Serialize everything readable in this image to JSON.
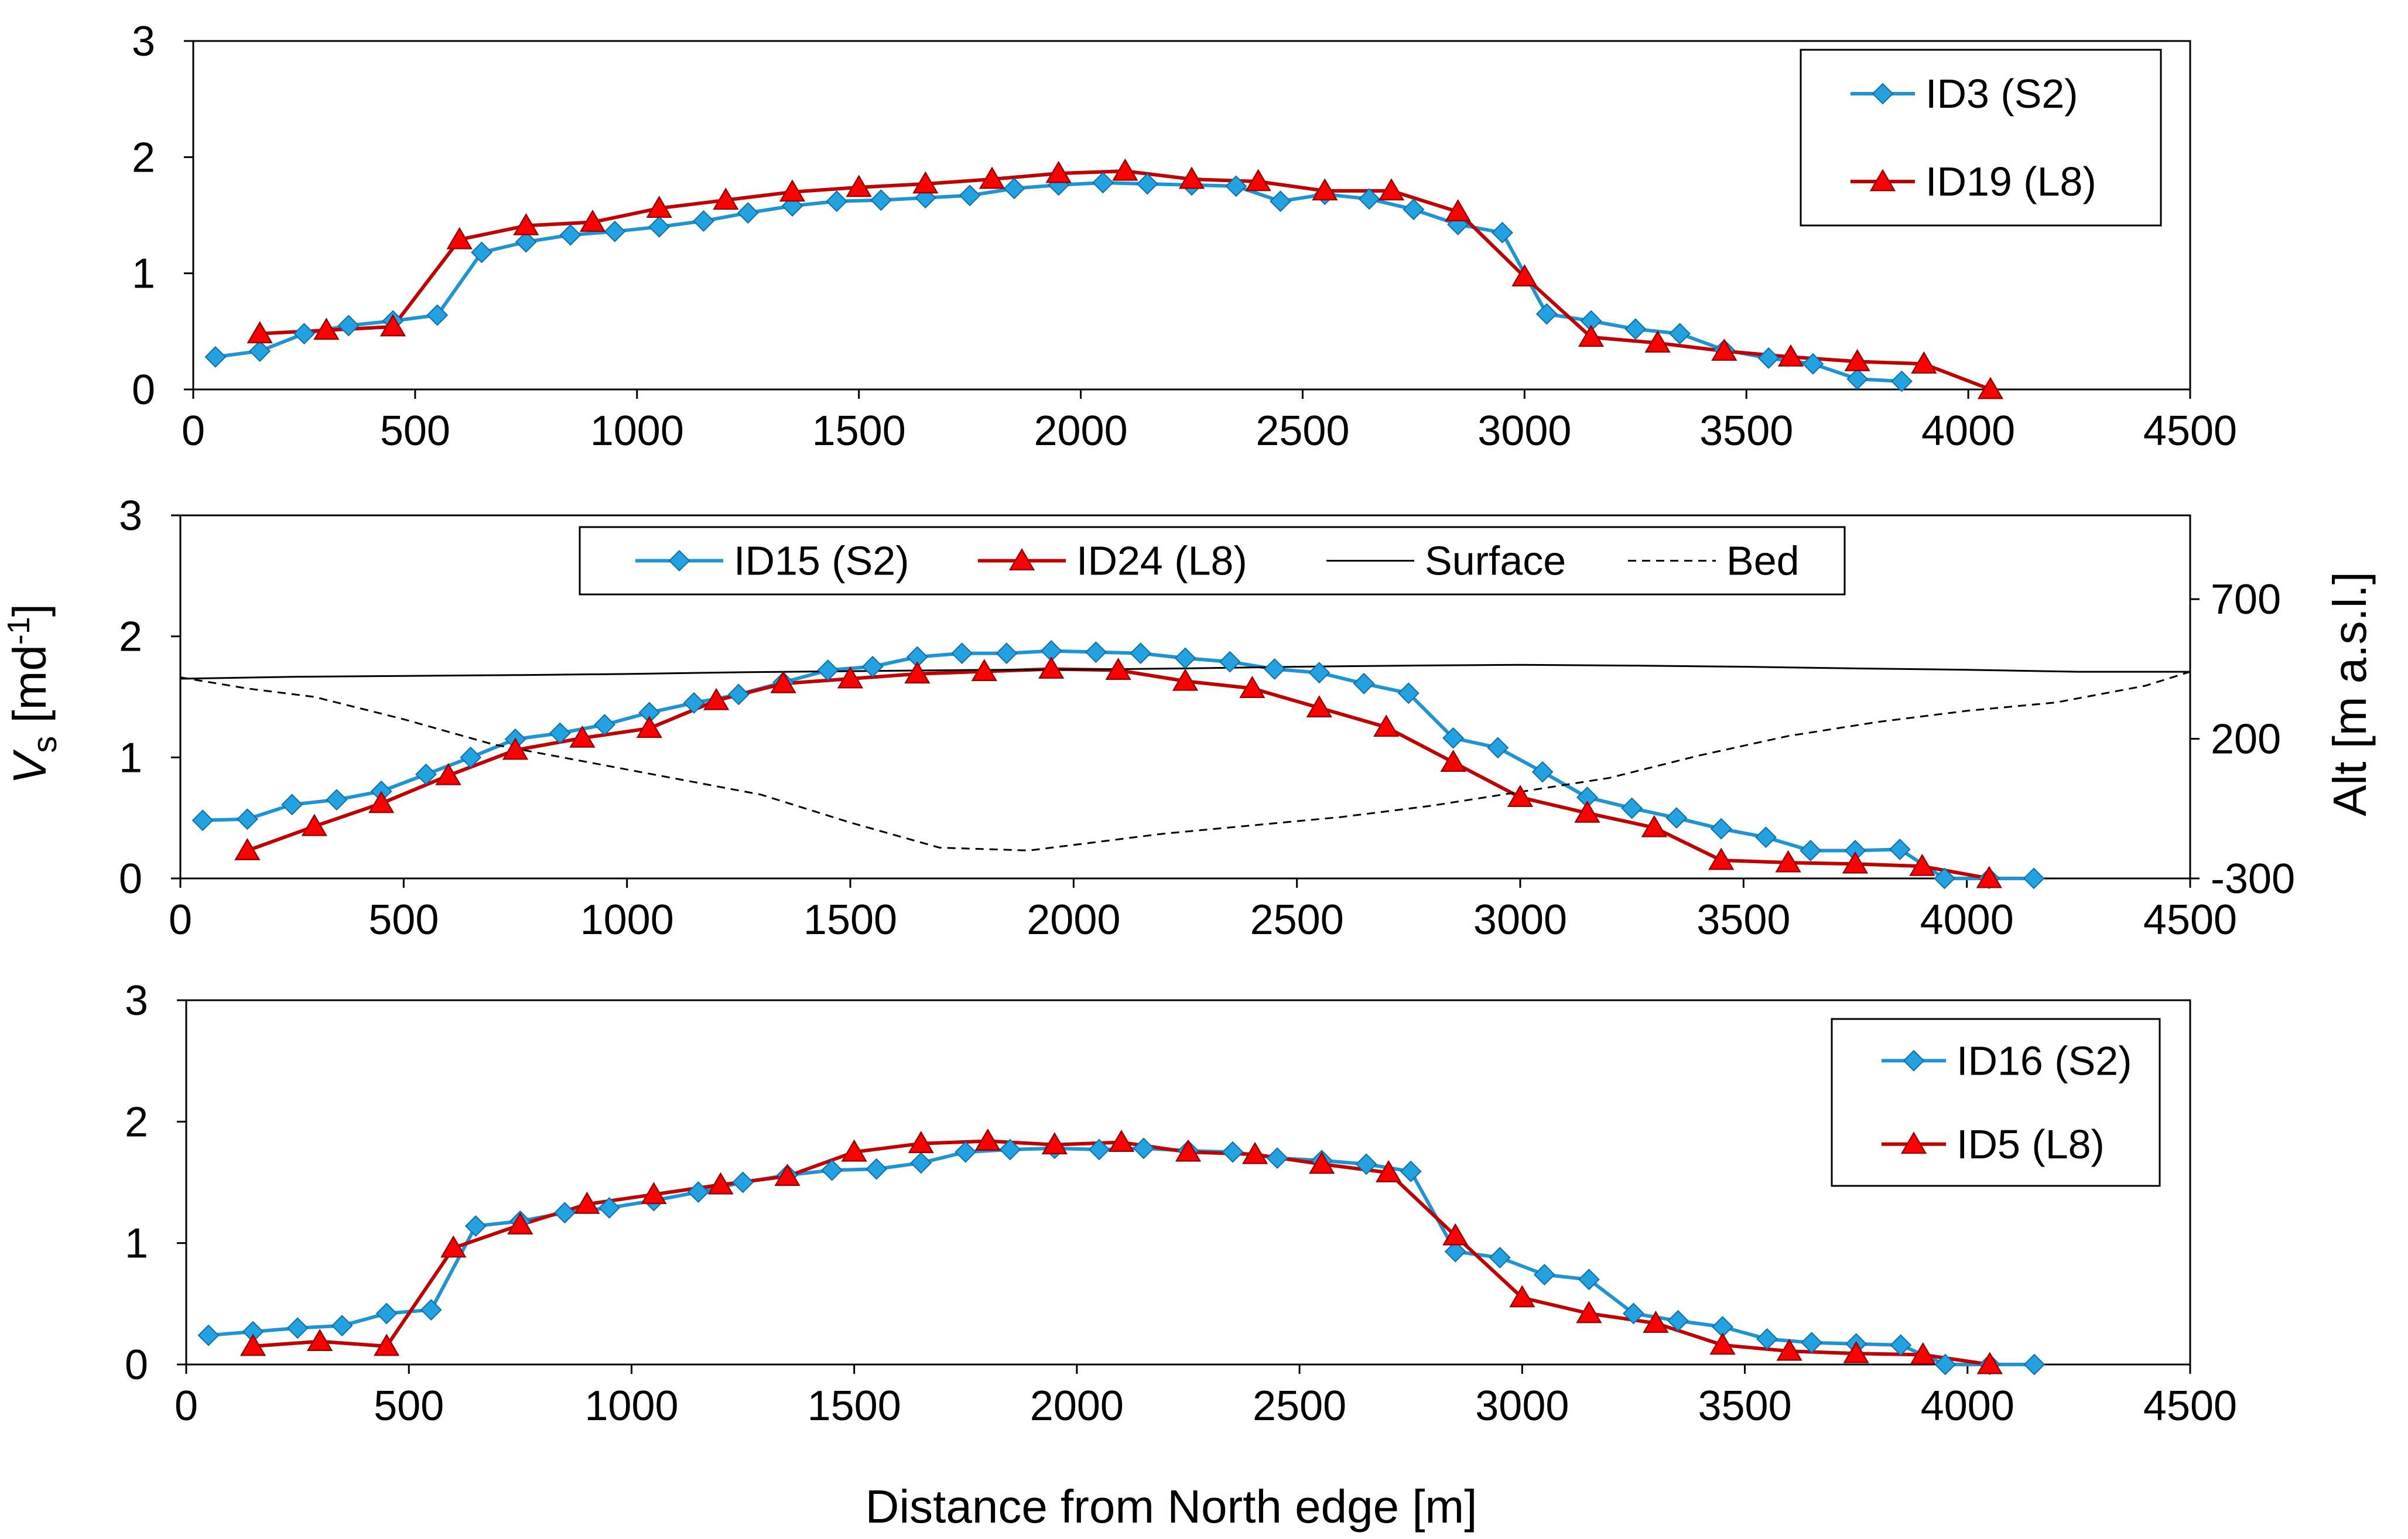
{
  "chart_data": [
    {
      "type": "line",
      "xlim": [
        0,
        4500
      ],
      "ylim": [
        0,
        3
      ],
      "xticks": [
        "0",
        "500",
        "1000",
        "1500",
        "2000",
        "2500",
        "3000",
        "3500",
        "4000",
        "4500"
      ],
      "yticks": [
        "0",
        "1",
        "2",
        "3"
      ],
      "legend_position": "top-right",
      "series": [
        {
          "name": "ID3 (S2)",
          "color": "#1f94d2",
          "marker": "diamond",
          "x": [
            50,
            150,
            250,
            350,
            450,
            550,
            650,
            750,
            850,
            950,
            1050,
            1150,
            1250,
            1350,
            1450,
            1550,
            1650,
            1750,
            1850,
            1950,
            2050,
            2150,
            2250,
            2350,
            2450,
            2550,
            2650,
            2750,
            2850,
            2950,
            3050,
            3150,
            3250,
            3350,
            3450,
            3550,
            3650,
            3750,
            3850
          ],
          "y": [
            0.28,
            0.33,
            0.48,
            0.55,
            0.59,
            0.64,
            1.18,
            1.27,
            1.33,
            1.36,
            1.4,
            1.45,
            1.52,
            1.58,
            1.62,
            1.63,
            1.65,
            1.67,
            1.73,
            1.76,
            1.78,
            1.77,
            1.76,
            1.75,
            1.62,
            1.68,
            1.64,
            1.55,
            1.42,
            1.35,
            0.65,
            0.59,
            0.52,
            0.48,
            0.34,
            0.27,
            0.22,
            0.09,
            0.07
          ]
        },
        {
          "name": "ID19 (L8)",
          "color": "#c00000",
          "marker": "triangle",
          "x": [
            150,
            300,
            450,
            600,
            750,
            900,
            1050,
            1200,
            1350,
            1500,
            1650,
            1800,
            1950,
            2100,
            2250,
            2400,
            2550,
            2700,
            2850,
            3000,
            3150,
            3300,
            3450,
            3600,
            3750,
            3900,
            4050
          ],
          "y": [
            0.48,
            0.51,
            0.54,
            1.29,
            1.41,
            1.44,
            1.56,
            1.63,
            1.7,
            1.74,
            1.77,
            1.81,
            1.86,
            1.88,
            1.81,
            1.79,
            1.71,
            1.71,
            1.53,
            0.97,
            0.45,
            0.4,
            0.33,
            0.28,
            0.24,
            0.22,
            0.0
          ]
        }
      ]
    },
    {
      "type": "line",
      "xlim": [
        0,
        4500
      ],
      "ylim": [
        0,
        3
      ],
      "ylabel": "V_s [md^-1]",
      "ylabel_main": "V",
      "ylabel_sub": "s",
      "ylabel_unit": " [md",
      "ylabel_sup": "-1",
      "ylabel_end": "]",
      "y2label": "Alt [m a.s.l.]",
      "y2lim": [
        -300,
        1000
      ],
      "xticks": [
        "0",
        "500",
        "1000",
        "1500",
        "2000",
        "2500",
        "3000",
        "3500",
        "4000",
        "4500"
      ],
      "yticks": [
        "0",
        "1",
        "2",
        "3"
      ],
      "y2ticks": [
        "-300",
        "200",
        "700"
      ],
      "legend_position": "top",
      "series": [
        {
          "name": "ID15 (S2)",
          "color": "#1f94d2",
          "marker": "diamond",
          "x": [
            50,
            150,
            250,
            350,
            450,
            550,
            650,
            750,
            850,
            950,
            1050,
            1150,
            1250,
            1350,
            1450,
            1550,
            1650,
            1750,
            1850,
            1950,
            2050,
            2150,
            2250,
            2350,
            2450,
            2550,
            2650,
            2750,
            2850,
            2950,
            3050,
            3150,
            3250,
            3350,
            3450,
            3550,
            3650,
            3750,
            3850,
            3950,
            4050,
            4150
          ],
          "y": [
            0.48,
            0.49,
            0.61,
            0.65,
            0.72,
            0.86,
            1.0,
            1.15,
            1.2,
            1.27,
            1.37,
            1.45,
            1.52,
            1.62,
            1.72,
            1.75,
            1.83,
            1.86,
            1.86,
            1.88,
            1.87,
            1.86,
            1.82,
            1.79,
            1.73,
            1.7,
            1.61,
            1.53,
            1.16,
            1.08,
            0.88,
            0.67,
            0.58,
            0.5,
            0.41,
            0.34,
            0.23,
            0.23,
            0.24,
            0.0,
            0.0,
            0.0
          ]
        },
        {
          "name": "ID24 (L8)",
          "color": "#c00000",
          "marker": "triangle",
          "x": [
            150,
            300,
            450,
            600,
            750,
            900,
            1050,
            1200,
            1350,
            1500,
            1650,
            1800,
            1950,
            2100,
            2250,
            2400,
            2550,
            2700,
            2850,
            3000,
            3150,
            3300,
            3450,
            3600,
            3750,
            3900,
            4050
          ],
          "y": [
            0.23,
            0.43,
            0.62,
            0.85,
            1.06,
            1.16,
            1.24,
            1.47,
            1.61,
            1.65,
            1.69,
            1.71,
            1.73,
            1.72,
            1.63,
            1.57,
            1.41,
            1.25,
            0.96,
            0.67,
            0.54,
            0.42,
            0.15,
            0.13,
            0.12,
            0.1,
            0.0
          ]
        },
        {
          "name": "Surface",
          "color": "#000000",
          "style": "solid",
          "axis": "y2",
          "x": [
            0,
            250,
            500,
            750,
            1000,
            1250,
            1500,
            1750,
            2000,
            2250,
            2500,
            2750,
            3000,
            3250,
            3500,
            3750,
            4000,
            4250,
            4500
          ],
          "y": [
            415,
            422,
            425,
            428,
            432,
            438,
            442,
            446,
            448,
            452,
            458,
            462,
            465,
            462,
            458,
            452,
            447,
            440,
            440
          ]
        },
        {
          "name": "Bed",
          "color": "#000000",
          "style": "dashed",
          "axis": "y2",
          "x": [
            0,
            150,
            300,
            500,
            700,
            900,
            1100,
            1300,
            1500,
            1700,
            1900,
            2000,
            2200,
            2400,
            2600,
            2800,
            3000,
            3200,
            3400,
            3600,
            3800,
            4000,
            4200,
            4400,
            4500
          ],
          "y": [
            420,
            380,
            350,
            270,
            180,
            120,
            60,
            0,
            -100,
            -190,
            -200,
            -180,
            -140,
            -110,
            -80,
            -40,
            10,
            60,
            140,
            210,
            260,
            300,
            330,
            390,
            440
          ]
        }
      ]
    },
    {
      "type": "line",
      "xlim": [
        0,
        4500
      ],
      "ylim": [
        0,
        3
      ],
      "xlabel": "Distance from North edge [m]",
      "xticks": [
        "0",
        "500",
        "1000",
        "1500",
        "2000",
        "2500",
        "3000",
        "3500",
        "4000",
        "4500"
      ],
      "yticks": [
        "0",
        "1",
        "2",
        "3"
      ],
      "legend_position": "top-right",
      "series": [
        {
          "name": "ID16 (S2)",
          "color": "#1f94d2",
          "marker": "diamond",
          "x": [
            50,
            150,
            250,
            350,
            450,
            550,
            650,
            750,
            850,
            950,
            1050,
            1150,
            1250,
            1350,
            1450,
            1550,
            1650,
            1750,
            1850,
            1950,
            2050,
            2150,
            2250,
            2350,
            2450,
            2550,
            2650,
            2750,
            2850,
            2950,
            3050,
            3150,
            3250,
            3350,
            3450,
            3550,
            3650,
            3750,
            3850,
            3950,
            4050,
            4150
          ],
          "y": [
            0.24,
            0.27,
            0.3,
            0.32,
            0.42,
            0.45,
            1.14,
            1.18,
            1.25,
            1.29,
            1.35,
            1.42,
            1.5,
            1.56,
            1.6,
            1.61,
            1.66,
            1.75,
            1.77,
            1.78,
            1.77,
            1.78,
            1.76,
            1.75,
            1.7,
            1.68,
            1.65,
            1.59,
            0.93,
            0.88,
            0.74,
            0.7,
            0.42,
            0.36,
            0.31,
            0.21,
            0.18,
            0.17,
            0.16,
            0.0,
            0.0,
            0.0
          ]
        },
        {
          "name": "ID5 (L8)",
          "color": "#c00000",
          "marker": "triangle",
          "x": [
            150,
            300,
            450,
            600,
            750,
            900,
            1050,
            1200,
            1350,
            1500,
            1650,
            1800,
            1950,
            2100,
            2250,
            2400,
            2550,
            2700,
            2850,
            3000,
            3150,
            3300,
            3450,
            3600,
            3750,
            3900,
            4050
          ],
          "y": [
            0.15,
            0.19,
            0.15,
            0.96,
            1.15,
            1.32,
            1.4,
            1.48,
            1.55,
            1.75,
            1.82,
            1.84,
            1.81,
            1.83,
            1.75,
            1.73,
            1.65,
            1.58,
            1.06,
            0.55,
            0.42,
            0.34,
            0.16,
            0.11,
            0.09,
            0.08,
            0.0
          ]
        }
      ]
    }
  ]
}
